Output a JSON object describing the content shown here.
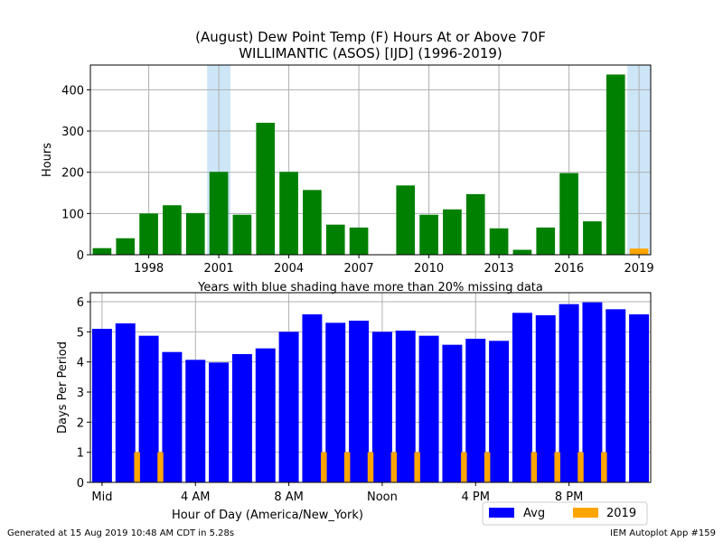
{
  "chart_data": [
    {
      "type": "bar",
      "title": "(August) Dew Point Temp (F) Hours At or Above 70F",
      "subtitle": "WILLIMANTIC (ASOS) [IJD] (1996-2019)",
      "xlabel": "Years with blue shading have more than 20% missing data",
      "ylabel": "Hours",
      "xlim": [
        1995.5,
        2019.5
      ],
      "ylim": [
        0,
        460
      ],
      "xticks": [
        1998,
        2001,
        2004,
        2007,
        2010,
        2013,
        2016,
        2019
      ],
      "yticks": [
        0,
        100,
        200,
        300,
        400
      ],
      "grid": true,
      "shaded_years": [
        2001,
        2019
      ],
      "shade_color": "#cde6f7",
      "bar_color": "#008000",
      "highlight_color": "#ffa500",
      "highlight_year": 2019,
      "x": [
        1996,
        1997,
        1998,
        1999,
        2000,
        2001,
        2002,
        2003,
        2004,
        2005,
        2006,
        2007,
        2008,
        2009,
        2010,
        2011,
        2012,
        2013,
        2014,
        2015,
        2016,
        2017,
        2018,
        2019
      ],
      "values": [
        16,
        40,
        100,
        120,
        101,
        201,
        97,
        320,
        201,
        157,
        73,
        66,
        0,
        168,
        97,
        110,
        147,
        64,
        12,
        66,
        198,
        81,
        437,
        15
      ]
    },
    {
      "type": "bar",
      "xlabel": "Hour of Day (America/New_York)",
      "ylabel": "Days Per Period",
      "xlim": [
        -0.5,
        23.5
      ],
      "ylim": [
        0,
        6.3
      ],
      "xticks": [
        0,
        4,
        8,
        12,
        16,
        20
      ],
      "xtick_labels": [
        "Mid",
        "4 AM",
        "8 AM",
        "Noon",
        "4 PM",
        "8 PM"
      ],
      "yticks": [
        0,
        1,
        2,
        3,
        4,
        5,
        6
      ],
      "grid": true,
      "legend_position": "bottom-right",
      "x": [
        0,
        1,
        2,
        3,
        4,
        5,
        6,
        7,
        8,
        9,
        10,
        11,
        12,
        13,
        14,
        15,
        16,
        17,
        18,
        19,
        20,
        21,
        22,
        23
      ],
      "series": [
        {
          "name": "Avg",
          "color": "#0000ff",
          "values": [
            5.1,
            5.28,
            4.87,
            4.33,
            4.07,
            3.98,
            4.26,
            4.45,
            5.0,
            5.58,
            5.3,
            5.37,
            5.0,
            5.04,
            4.87,
            4.57,
            4.77,
            4.7,
            5.63,
            5.55,
            5.92,
            5.98,
            5.75,
            5.58
          ]
        },
        {
          "name": "2019",
          "color": "#ffa500",
          "values": [
            0,
            1,
            1,
            0,
            0,
            0,
            0,
            0,
            0,
            1,
            1,
            1,
            1,
            1,
            0,
            1,
            1,
            0,
            1,
            1,
            1,
            1,
            0,
            0
          ]
        }
      ]
    }
  ],
  "footer": {
    "left": "Generated at 15 Aug 2019 10:48 AM CDT in 5.28s",
    "right": "IEM Autoplot App #159"
  }
}
